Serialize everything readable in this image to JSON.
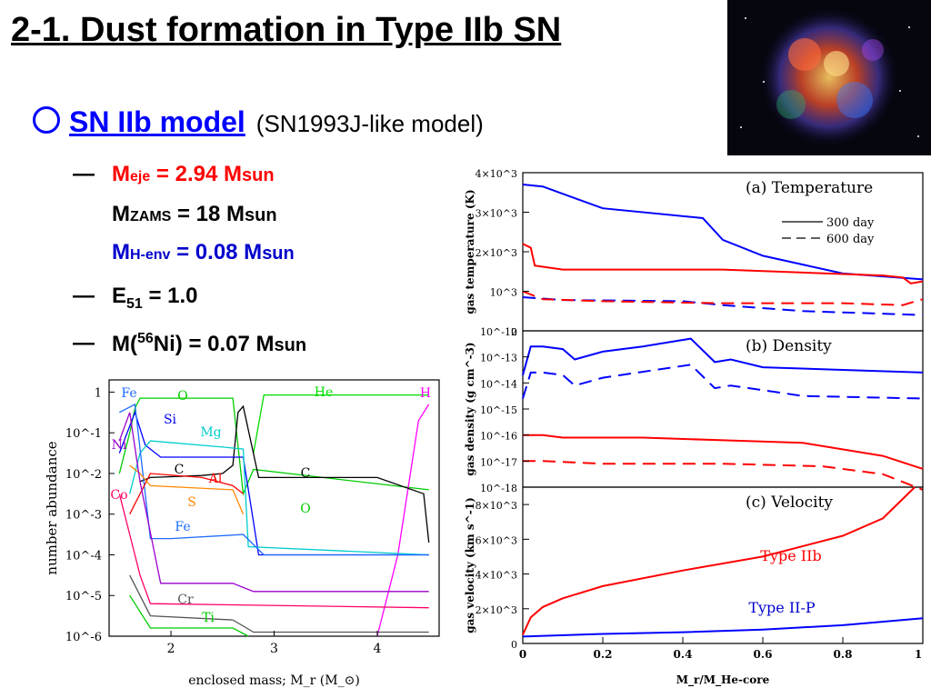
{
  "slide": {
    "title": "2-1. Dust formation in Type IIb SN",
    "model_label": "SN IIb model",
    "model_sub": "(SN1993J-like model)",
    "bullets": {
      "dash": "—",
      "meje_main": "M",
      "meje_sub": "eje",
      "meje_val": " = 2.94 M",
      "meje_unit": "sun",
      "mzams_main": "M",
      "mzams_sub": "ZAMS",
      "mzams_val": " = 18 M",
      "mzams_unit": "sun",
      "mhenv_main": "M",
      "mhenv_sub": "H-env",
      "mhenv_val": " = 0.08 M",
      "mhenv_unit": "sun",
      "e51_main": "E",
      "e51_sub": "51",
      "e51_val": " = 1.0",
      "ni_pre": "M(",
      "ni_sup": "56",
      "ni_post": "Ni) = 0.07 M",
      "ni_unit": "sun"
    }
  },
  "colors": {
    "blue": "#0000ff",
    "red": "#ff0000",
    "title": "#000000"
  },
  "chart_data": [
    {
      "type": "line",
      "title": "",
      "xlabel": "enclosed mass; M_r (M_⊙)",
      "ylabel": "number abundance",
      "xlim": [
        1.4,
        4.6
      ],
      "ylim_log10": [
        -6,
        0.3
      ],
      "x_ticks": [
        "2",
        "3",
        "4"
      ],
      "y_ticks": [
        "1",
        "10^-1",
        "10^-2",
        "10^-3",
        "10^-4",
        "10^-5",
        "10^-6"
      ],
      "series": [
        {
          "name": "O",
          "color": "#00cc00",
          "x": [
            1.5,
            1.6,
            1.65,
            1.7,
            2.6,
            2.7,
            2.8,
            4.5
          ],
          "y": [
            -2,
            -1,
            -0.4,
            -0.15,
            -0.15,
            -2.5,
            -1.9,
            -2.4
          ]
        },
        {
          "name": "He",
          "color": "#00dd00",
          "x": [
            2.8,
            2.9,
            4.5
          ],
          "y": [
            -1.5,
            -0.07,
            -0.07
          ]
        },
        {
          "name": "H",
          "color": "#ff00ff",
          "x": [
            4.0,
            4.2,
            4.4,
            4.5
          ],
          "y": [
            -6,
            -4,
            -0.7,
            -0.3
          ]
        },
        {
          "name": "C",
          "color": "#000000",
          "x": [
            1.7,
            1.8,
            2.3,
            2.5,
            2.6,
            2.65,
            2.7,
            2.85,
            4.0,
            4.45,
            4.5
          ],
          "y": [
            -2.2,
            -2.1,
            -2.05,
            -2,
            -1.8,
            -0.5,
            -0.35,
            -2.1,
            -2.1,
            -2.5,
            -3.7
          ]
        },
        {
          "name": "Si",
          "color": "#0000ff",
          "x": [
            1.5,
            1.65,
            1.75,
            1.9,
            2.7,
            2.85,
            4.5
          ],
          "y": [
            -1.5,
            -0.5,
            -1.3,
            -1.6,
            -1.6,
            -4.0,
            -4.0
          ]
        },
        {
          "name": "Mg",
          "color": "#00cccc",
          "x": [
            1.6,
            1.7,
            1.8,
            2.5,
            2.7,
            2.75,
            4.5
          ],
          "y": [
            -2.5,
            -1.5,
            -1.2,
            -1.35,
            -1.4,
            -3.8,
            -4.0
          ]
        },
        {
          "name": "Fe",
          "color": "#1e6bff",
          "x": [
            1.5,
            1.65,
            1.8,
            2.0,
            2.7,
            2.9,
            4.5
          ],
          "y": [
            -0.5,
            -0.3,
            -3.6,
            -3.6,
            -3.5,
            -4.0,
            -4.0
          ]
        },
        {
          "name": "Al",
          "color": "#ff0000",
          "x": [
            1.6,
            1.8,
            2.3,
            2.6,
            2.7
          ],
          "y": [
            -3,
            -2.0,
            -2.1,
            -2.3,
            -2.5
          ]
        },
        {
          "name": "S",
          "color": "#ff8800",
          "x": [
            1.6,
            1.7,
            1.8,
            2.6,
            2.7
          ],
          "y": [
            -1.8,
            -2.0,
            -2.3,
            -2.4,
            -3.0
          ]
        },
        {
          "name": "Ni",
          "color": "#9900cc",
          "x": [
            1.5,
            1.6,
            1.7,
            1.9,
            2.6,
            2.8,
            4.5
          ],
          "y": [
            -1.2,
            -0.5,
            -2.2,
            -4.7,
            -4.7,
            -4.9,
            -4.9
          ]
        },
        {
          "name": "Co",
          "color": "#ff0066",
          "x": [
            1.5,
            1.6,
            1.7,
            1.8,
            4.5
          ],
          "y": [
            -2.5,
            -3.5,
            -4.5,
            -5.2,
            -5.3
          ]
        },
        {
          "name": "Cr",
          "color": "#555555",
          "x": [
            1.6,
            1.8,
            2.6,
            2.8,
            4.5
          ],
          "y": [
            -4.5,
            -5.5,
            -5.6,
            -5.9,
            -5.9
          ]
        },
        {
          "name": "Ti",
          "color": "#00cc00",
          "x": [
            1.6,
            1.8,
            2.6,
            2.75
          ],
          "y": [
            -5,
            -5.8,
            -5.8,
            -6
          ]
        }
      ],
      "labels": [
        "Fe",
        "O",
        "He",
        "H",
        "Si",
        "Mg",
        "Ni",
        "C",
        "C",
        "Al",
        "Co",
        "S",
        "Fe",
        "O",
        "Cr",
        "Ti"
      ]
    },
    {
      "type": "line",
      "panel": "(a) Temperature",
      "ylabel": "gas temperature (K)",
      "xlim": [
        0,
        1
      ],
      "ylim": [
        0,
        4000
      ],
      "y_ticks": [
        "4×10^3",
        "3×10^3",
        "2×10^3",
        "10^3",
        "0"
      ],
      "legend": [
        {
          "name": "300 day",
          "style": "solid"
        },
        {
          "name": "600 day",
          "style": "dashed"
        }
      ],
      "series": [
        {
          "name": "300 day IIP",
          "color": "#0000ff",
          "dash": false,
          "x": [
            0,
            0.05,
            0.2,
            0.45,
            0.5,
            0.6,
            0.8,
            1.0
          ],
          "y": [
            3700,
            3650,
            3100,
            2850,
            2300,
            1900,
            1450,
            1300
          ]
        },
        {
          "name": "300 day IIb",
          "color": "#ff0000",
          "dash": false,
          "x": [
            0,
            0.02,
            0.03,
            0.1,
            0.5,
            0.9,
            0.95,
            0.97,
            1.0
          ],
          "y": [
            2200,
            2100,
            1650,
            1550,
            1550,
            1400,
            1350,
            1200,
            1250
          ]
        },
        {
          "name": "600 day IIP",
          "color": "#0000ff",
          "dash": true,
          "x": [
            0,
            0.1,
            0.4,
            0.5,
            0.7,
            1.0
          ],
          "y": [
            850,
            780,
            750,
            650,
            500,
            400
          ]
        },
        {
          "name": "600 day IIb",
          "color": "#ff0000",
          "dash": true,
          "x": [
            0,
            0.05,
            0.2,
            0.5,
            0.8,
            0.95,
            1.0
          ],
          "y": [
            1000,
            800,
            750,
            700,
            700,
            650,
            800
          ]
        }
      ]
    },
    {
      "type": "line",
      "panel": "(b) Density",
      "ylabel": "gas density (g cm^-3)",
      "xlim": [
        0,
        1
      ],
      "ylim_log10": [
        -18,
        -12
      ],
      "y_ticks": [
        "10^-12",
        "10^-13",
        "10^-14",
        "10^-15",
        "10^-16",
        "10^-17",
        "10^-18"
      ],
      "series": [
        {
          "name": "300 day IIP",
          "color": "#0000ff",
          "dash": false,
          "x": [
            0,
            0.02,
            0.05,
            0.1,
            0.13,
            0.2,
            0.3,
            0.42,
            0.48,
            0.52,
            0.6,
            0.8,
            1.0
          ],
          "y": [
            -13.7,
            -12.6,
            -12.6,
            -12.7,
            -13.1,
            -12.8,
            -12.6,
            -12.3,
            -13.2,
            -13.1,
            -13.4,
            -13.5,
            -13.6
          ]
        },
        {
          "name": "300 day IIb",
          "color": "#ff0000",
          "dash": false,
          "x": [
            0,
            0.05,
            0.1,
            0.3,
            0.5,
            0.7,
            0.9,
            1.0
          ],
          "y": [
            -16,
            -16,
            -16.1,
            -16.1,
            -16.2,
            -16.3,
            -16.8,
            -17.3
          ]
        },
        {
          "name": "600 day IIP",
          "color": "#0000ff",
          "dash": true,
          "x": [
            0,
            0.02,
            0.05,
            0.1,
            0.13,
            0.2,
            0.42,
            0.48,
            0.52,
            0.7,
            1.0
          ],
          "y": [
            -14.6,
            -13.6,
            -13.6,
            -13.7,
            -14.1,
            -13.8,
            -13.3,
            -14.2,
            -14.1,
            -14.5,
            -14.6
          ]
        },
        {
          "name": "600 day IIb",
          "color": "#ff0000",
          "dash": true,
          "x": [
            0,
            0.05,
            0.2,
            0.5,
            0.75,
            0.9,
            1.0
          ],
          "y": [
            -17,
            -17,
            -17.1,
            -17.1,
            -17.2,
            -17.5,
            -18.1
          ]
        }
      ]
    },
    {
      "type": "line",
      "panel": "(c) Velocity",
      "ylabel": "gas velocity (km s^-1)",
      "xlabel": "M_r/M_He-core",
      "xlim": [
        0,
        1
      ],
      "ylim": [
        0,
        9000
      ],
      "x_ticks": [
        "0",
        "0.2",
        "0.4",
        "0.6",
        "0.8",
        "1"
      ],
      "y_ticks": [
        "8×10^3",
        "6×10^3",
        "4×10^3",
        "2×10^3",
        "0"
      ],
      "series": [
        {
          "name": "Type IIb",
          "color": "#ff0000",
          "x": [
            0,
            0.02,
            0.05,
            0.1,
            0.2,
            0.4,
            0.6,
            0.8,
            0.9,
            0.98
          ],
          "y": [
            500,
            1500,
            2100,
            2600,
            3300,
            4200,
            5000,
            6200,
            7200,
            9000
          ]
        },
        {
          "name": "Type II-P",
          "color": "#0000ff",
          "x": [
            0,
            0.2,
            0.4,
            0.6,
            0.8,
            1.0
          ],
          "y": [
            400,
            550,
            650,
            800,
            1050,
            1450
          ]
        }
      ]
    }
  ]
}
